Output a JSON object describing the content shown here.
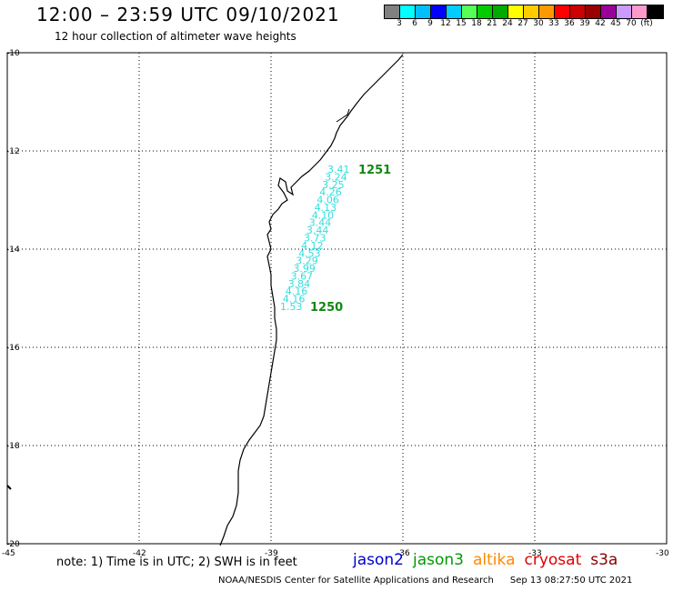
{
  "header": {
    "title": "12:00 – 23:59 UTC 09/10/2021",
    "subtitle": "12 hour collection of altimeter wave heights"
  },
  "colorbar": {
    "colors": [
      "#808080",
      "#00ffff",
      "#00bfff",
      "#0000ff",
      "#00ccff",
      "#55ff55",
      "#00cc00",
      "#00aa00",
      "#ffff00",
      "#ffcc00",
      "#ff9900",
      "#ff0000",
      "#cc0000",
      "#990000",
      "#990099",
      "#cc99ff",
      "#ff99cc",
      "#000000"
    ],
    "labels": [
      "3",
      "6",
      "9",
      "12",
      "15",
      "18",
      "21",
      "24",
      "27",
      "30",
      "33",
      "36",
      "39",
      "42",
      "45",
      "70",
      "(ft)"
    ]
  },
  "axes": {
    "lat_labels": [
      "-10",
      "-12",
      "-14",
      "-16",
      "-18",
      "-20"
    ],
    "lon_labels": [
      "-45",
      "-42",
      "-39",
      "-36",
      "-33",
      "-30"
    ]
  },
  "track": {
    "color": "#33dddd",
    "values": [
      "3.41",
      "3.24",
      "3.25",
      "4.26",
      "4.06",
      "4.13",
      "4.10",
      "3.44",
      "3.44",
      "3.73",
      "4.12",
      "4.53",
      "3.29",
      "3.99",
      "3.67",
      "3.84",
      "4.16",
      "4.16",
      "1.53"
    ]
  },
  "time_labels": {
    "color": "#118811",
    "top": "1251",
    "bottom": "1250"
  },
  "footer": {
    "note": "note:  1) Time is in UTC;  2) SWH is in feet",
    "satellites": [
      {
        "name": "jason2",
        "color": "#0000cc"
      },
      {
        "name": "jason3",
        "color": "#009900"
      },
      {
        "name": "altika",
        "color": "#ff8800"
      },
      {
        "name": "cryosat",
        "color": "#dd0000"
      },
      {
        "name": "s3a",
        "color": "#880000"
      }
    ],
    "credit": "NOAA/NESDIS Center for Satellite Applications and Research",
    "timestamp": "Sep 13 08:27:50 UTC 2021"
  }
}
